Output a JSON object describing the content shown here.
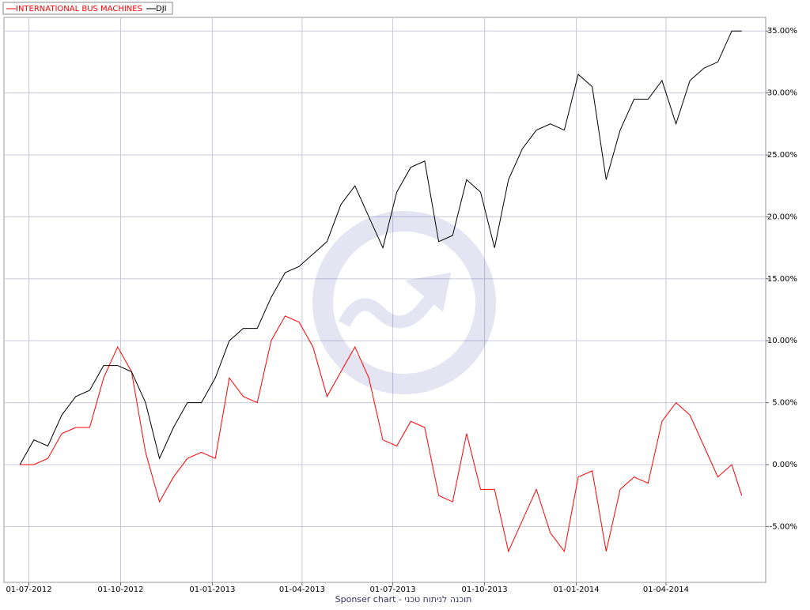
{
  "chart_data": {
    "type": "line",
    "footer": "Sponser chart - תוכנה לניתוח טכני",
    "x": [
      "2012-06-22",
      "2012-07-06",
      "2012-07-20",
      "2012-08-03",
      "2012-08-17",
      "2012-08-31",
      "2012-09-14",
      "2012-09-28",
      "2012-10-12",
      "2012-10-26",
      "2012-11-09",
      "2012-11-23",
      "2012-12-07",
      "2012-12-21",
      "2013-01-04",
      "2013-01-18",
      "2013-02-01",
      "2013-02-15",
      "2013-03-01",
      "2013-03-15",
      "2013-03-29",
      "2013-04-12",
      "2013-04-26",
      "2013-05-10",
      "2013-05-24",
      "2013-06-07",
      "2013-06-21",
      "2013-07-05",
      "2013-07-19",
      "2013-08-02",
      "2013-08-16",
      "2013-08-30",
      "2013-09-13",
      "2013-09-27",
      "2013-10-11",
      "2013-10-25",
      "2013-11-08",
      "2013-11-22",
      "2013-12-06",
      "2013-12-20",
      "2014-01-03",
      "2014-01-17",
      "2014-01-31",
      "2014-02-14",
      "2014-02-28",
      "2014-03-14",
      "2014-03-28",
      "2014-04-11",
      "2014-04-25",
      "2014-05-09",
      "2014-05-23",
      "2014-06-06",
      "2014-06-16"
    ],
    "series": [
      {
        "name": "INTERNATIONAL BUS MACHINES",
        "color": "#ff0000",
        "values": [
          0,
          0,
          0.5,
          2.5,
          3,
          3,
          7,
          9.5,
          7.5,
          1,
          -3,
          -1,
          0.5,
          1,
          0.5,
          7,
          5.5,
          5,
          10,
          12,
          11.5,
          9.5,
          5.5,
          7.5,
          9.5,
          7,
          2,
          1.5,
          3.5,
          3,
          -2.5,
          -3,
          2.5,
          -2,
          -2,
          -7,
          -4.5,
          -2,
          -5.5,
          -7,
          -1,
          -0.5,
          -7,
          -2,
          -1,
          -1.5,
          3.5,
          5,
          4,
          1.5,
          -1,
          0,
          -2.5
        ]
      },
      {
        "name": "DJI",
        "color": "#000000",
        "values": [
          0,
          2,
          1.5,
          4,
          5.5,
          6,
          8,
          8,
          7.5,
          5,
          0.5,
          3,
          5,
          5,
          7,
          10,
          11,
          11,
          13.5,
          15.5,
          16,
          17,
          18,
          21,
          22.5,
          20,
          17.5,
          22,
          24,
          24.5,
          18,
          18.5,
          23,
          22,
          17.5,
          23,
          25.5,
          27,
          27.5,
          27,
          31.5,
          30.5,
          23,
          27,
          29.5,
          29.5,
          31,
          27.5,
          31,
          32,
          32.5,
          35,
          35
        ]
      }
    ],
    "xlim": [
      "2012-06-06",
      "2014-07-10"
    ],
    "xticks": [
      {
        "value": "2012-07-01",
        "label": "01-07-2012"
      },
      {
        "value": "2012-10-01",
        "label": "01-10-2012"
      },
      {
        "value": "2013-01-01",
        "label": "01-01-2013"
      },
      {
        "value": "2013-04-01",
        "label": "01-04-2013"
      },
      {
        "value": "2013-07-01",
        "label": "01-07-2013"
      },
      {
        "value": "2013-10-01",
        "label": "01-10-2013"
      },
      {
        "value": "2014-01-01",
        "label": "01-01-2014"
      },
      {
        "value": "2014-04-01",
        "label": "01-04-2014"
      }
    ],
    "ylim": [
      -9.5,
      36.1
    ],
    "yticks": [
      {
        "value": -5,
        "label": "-5.00%"
      },
      {
        "value": 0,
        "label": "0.00%"
      },
      {
        "value": 5,
        "label": "5.00%"
      },
      {
        "value": 10,
        "label": "10.00%"
      },
      {
        "value": 15,
        "label": "15.00%"
      },
      {
        "value": 20,
        "label": "20.00%"
      },
      {
        "value": 25,
        "label": "25.00%"
      },
      {
        "value": 30,
        "label": "30.00%"
      },
      {
        "value": 35,
        "label": "35.00%"
      }
    ],
    "grid": true
  }
}
